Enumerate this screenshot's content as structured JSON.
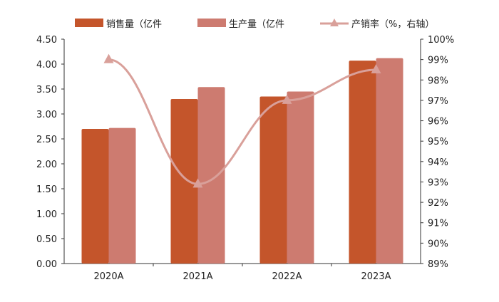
{
  "chart_data": {
    "type": "bar",
    "categories": [
      "2020A",
      "2021A",
      "2022A",
      "2023A"
    ],
    "series": [
      {
        "name": "销售量（亿件",
        "kind": "bar",
        "axis": "left",
        "color": "#C4552B",
        "values": [
          2.7,
          3.3,
          3.35,
          4.07
        ]
      },
      {
        "name": "生产量（亿件",
        "kind": "bar",
        "axis": "left",
        "color": "#CD7B70",
        "values": [
          2.72,
          3.54,
          3.45,
          4.12
        ]
      },
      {
        "name": "产销率（%，右轴）",
        "kind": "line",
        "axis": "right",
        "color": "#D9A09A",
        "marker": "triangle",
        "values": [
          99.0,
          92.9,
          97.0,
          98.5
        ]
      }
    ],
    "y_left": {
      "range": [
        0,
        4.5
      ],
      "ticks": [
        "0.00",
        "0.50",
        "1.00",
        "1.50",
        "2.00",
        "2.50",
        "3.00",
        "3.50",
        "4.00",
        "4.50"
      ]
    },
    "y_right": {
      "range": [
        89,
        100
      ],
      "ticks": [
        "89%",
        "90%",
        "91%",
        "92%",
        "93%",
        "94%",
        "95%",
        "96%",
        "97%",
        "98%",
        "99%",
        "100%"
      ]
    },
    "grid": false,
    "legend_position": "top"
  }
}
